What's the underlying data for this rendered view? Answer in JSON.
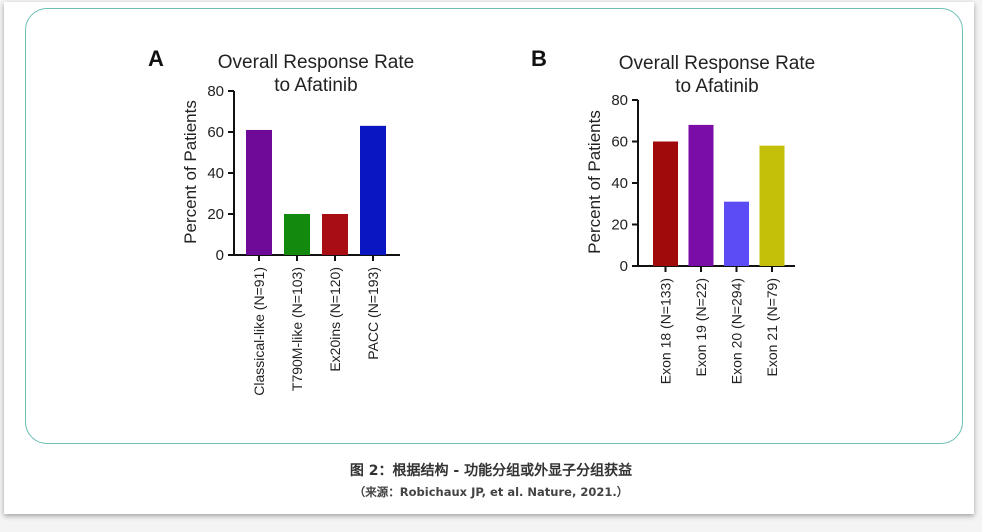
{
  "caption": {
    "main": "图 2：根据结构 - 功能分组或外显子分组获益",
    "source": "（来源：Robichaux JP, et al. Nature, 2021.）"
  },
  "chart_data": [
    {
      "type": "bar",
      "panel": "A",
      "title_line1": "Overall Response Rate",
      "title_line2": "to Afatinib",
      "ylabel": "Percent of Patients",
      "ylim": [
        0,
        80
      ],
      "yticks": [
        "0",
        "20",
        "40",
        "60",
        "80"
      ],
      "categories": [
        "Classical-like (N=91)",
        "T790M-like (N=103)",
        "Ex20ins (N=120)",
        "PACC (N=193)"
      ],
      "values": [
        61,
        20,
        20,
        63
      ],
      "colors": [
        "#6f0a98",
        "#138a0e",
        "#a80d14",
        "#0a16c2"
      ]
    },
    {
      "type": "bar",
      "panel": "B",
      "title_line1": "Overall Response Rate",
      "title_line2": "to Afatinib",
      "ylabel": "Percent of Patients",
      "ylim": [
        0,
        80
      ],
      "yticks": [
        "0",
        "20",
        "40",
        "60",
        "80"
      ],
      "categories": [
        "Exon 18 (N=133)",
        "Exon 19 (N=22)",
        "Exon 20 (N=294)",
        "Exon 21 (N=79)"
      ],
      "values": [
        60,
        68,
        31,
        58
      ],
      "colors": [
        "#a00a0a",
        "#7a0ca8",
        "#5c4cf5",
        "#c4c00a"
      ]
    }
  ]
}
